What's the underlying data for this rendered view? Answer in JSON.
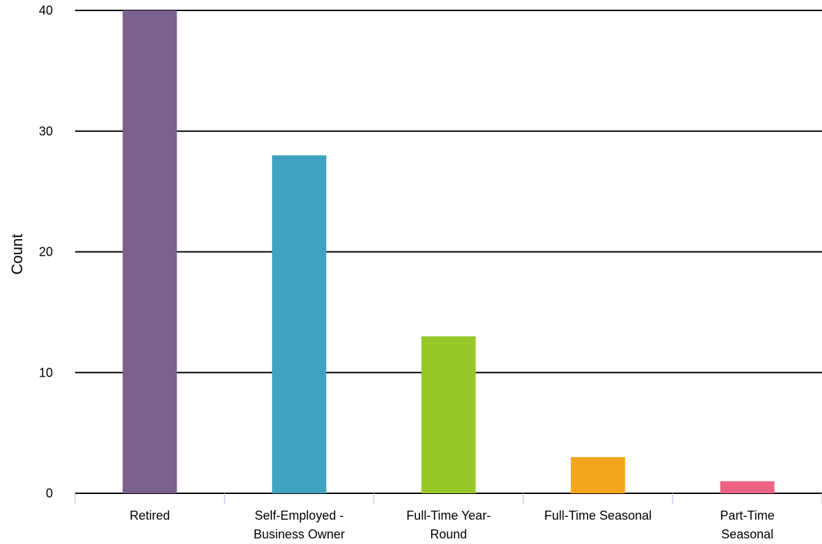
{
  "chart_data": {
    "type": "bar",
    "title": "",
    "xlabel": "",
    "ylabel": "Count",
    "ylim": [
      0,
      40
    ],
    "yticks": [
      0,
      10,
      20,
      30,
      40
    ],
    "grid": true,
    "legend": "none",
    "categories": [
      [
        "Retired"
      ],
      [
        "Self-Employed -",
        "Business Owner"
      ],
      [
        "Full-Time Year-",
        "Round"
      ],
      [
        "Full-Time Seasonal"
      ],
      [
        "Part-Time",
        "Seasonal"
      ]
    ],
    "values": [
      40,
      28,
      13,
      3,
      1
    ],
    "colors": [
      "#7b618d",
      "#40a2c1",
      "#97c82a",
      "#f3a51d",
      "#ec6283"
    ],
    "gridline_color": "#000000",
    "axis_tick_color": "#c8d0e8"
  }
}
